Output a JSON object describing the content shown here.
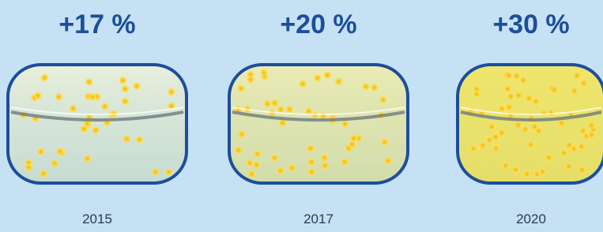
{
  "items": [
    {
      "label": "+17 %",
      "year": "2015"
    },
    {
      "label": "+20 %",
      "year": "2017"
    },
    {
      "label": "+30 %",
      "year": "2020"
    }
  ]
}
